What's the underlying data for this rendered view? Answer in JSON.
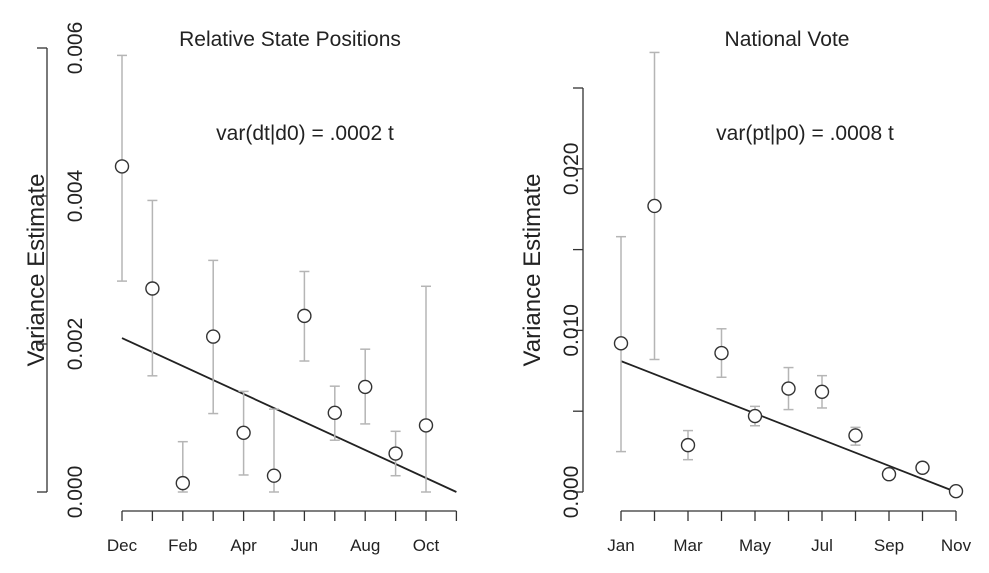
{
  "chart_data": [
    {
      "type": "scatter",
      "title": "Relative State Positions",
      "annotation": "var(dt|d0) = .0002 t",
      "ylabel": "Variance Estimate",
      "xlabel": "",
      "ylim": [
        0,
        0.006
      ],
      "yticks": [
        "0.000",
        "0.002",
        "0.004",
        "0.006"
      ],
      "ytick_values": [
        0,
        0.002,
        0.004,
        0.006
      ],
      "x_categories": [
        "Dec",
        "Jan",
        "Feb",
        "Mar",
        "Apr",
        "May",
        "Jun",
        "Jul",
        "Aug",
        "Sep",
        "Oct",
        "Nov"
      ],
      "x_tick_labels": [
        "Dec",
        "Feb",
        "Apr",
        "Jun",
        "Aug",
        "Oct"
      ],
      "points": [
        {
          "x": "Dec",
          "y": 0.0044,
          "lower": 0.00285,
          "upper": 0.0059
        },
        {
          "x": "Jan",
          "y": 0.00275,
          "lower": 0.00157,
          "upper": 0.00394
        },
        {
          "x": "Feb",
          "y": 0.00012,
          "lower": 0.0,
          "upper": 0.00068
        },
        {
          "x": "Mar",
          "y": 0.0021,
          "lower": 0.00106,
          "upper": 0.00313
        },
        {
          "x": "Apr",
          "y": 0.0008,
          "lower": 0.00023,
          "upper": 0.00136
        },
        {
          "x": "May",
          "y": 0.00022,
          "lower": 0.0,
          "upper": 0.00112
        },
        {
          "x": "Jun",
          "y": 0.00238,
          "lower": 0.00177,
          "upper": 0.00298
        },
        {
          "x": "Jul",
          "y": 0.00107,
          "lower": 0.0007,
          "upper": 0.00143
        },
        {
          "x": "Aug",
          "y": 0.00142,
          "lower": 0.00092,
          "upper": 0.00193
        },
        {
          "x": "Sep",
          "y": 0.00052,
          "lower": 0.00022,
          "upper": 0.00082
        },
        {
          "x": "Oct",
          "y": 0.0009,
          "lower": 0.0,
          "upper": 0.00278
        }
      ],
      "fit_line": {
        "x_start": "Dec",
        "y_start": 0.00208,
        "x_end": "Nov",
        "y_end": 0.0
      }
    },
    {
      "type": "scatter",
      "title": "National Vote",
      "annotation": "var(pt|p0) = .0008 t",
      "ylabel": "Variance Estimate",
      "xlabel": "",
      "ylim": [
        0,
        0.025
      ],
      "yticks": [
        "0.000",
        "0.010",
        "0.020"
      ],
      "ytick_values": [
        0,
        0.005,
        0.01,
        0.015,
        0.02,
        0.025
      ],
      "ytick_labels_all": [
        "0.000",
        "",
        "0.010",
        "",
        "0.020",
        ""
      ],
      "x_categories": [
        "Jan",
        "Feb",
        "Mar",
        "Apr",
        "May",
        "Jun",
        "Jul",
        "Aug",
        "Sep",
        "Oct",
        "Nov"
      ],
      "x_tick_labels": [
        "Jan",
        "Mar",
        "May",
        "Jul",
        "Sep",
        "Nov"
      ],
      "points": [
        {
          "x": "Jan",
          "y": 0.0092,
          "lower": 0.0025,
          "upper": 0.0158
        },
        {
          "x": "Feb",
          "y": 0.0177,
          "lower": 0.0082,
          "upper": 0.0272
        },
        {
          "x": "Mar",
          "y": 0.0029,
          "lower": 0.002,
          "upper": 0.0038
        },
        {
          "x": "Apr",
          "y": 0.0086,
          "lower": 0.0071,
          "upper": 0.0101
        },
        {
          "x": "May",
          "y": 0.0047,
          "lower": 0.0041,
          "upper": 0.0053
        },
        {
          "x": "Jun",
          "y": 0.0064,
          "lower": 0.0051,
          "upper": 0.0077
        },
        {
          "x": "Jul",
          "y": 0.0062,
          "lower": 0.0052,
          "upper": 0.0072
        },
        {
          "x": "Aug",
          "y": 0.0035,
          "lower": 0.0029,
          "upper": 0.004
        },
        {
          "x": "Sep",
          "y": 0.0011,
          "lower": 0.0008,
          "upper": 0.0014
        },
        {
          "x": "Oct",
          "y": 0.0015,
          "lower": 0.0012,
          "upper": 0.0018
        },
        {
          "x": "Nov",
          "y": 5e-05,
          "lower": 0.0,
          "upper": 0.0001
        }
      ],
      "fit_line": {
        "x_start": "Jan",
        "y_start": 0.0081,
        "x_end": "Nov",
        "y_end": 0.0
      }
    }
  ]
}
